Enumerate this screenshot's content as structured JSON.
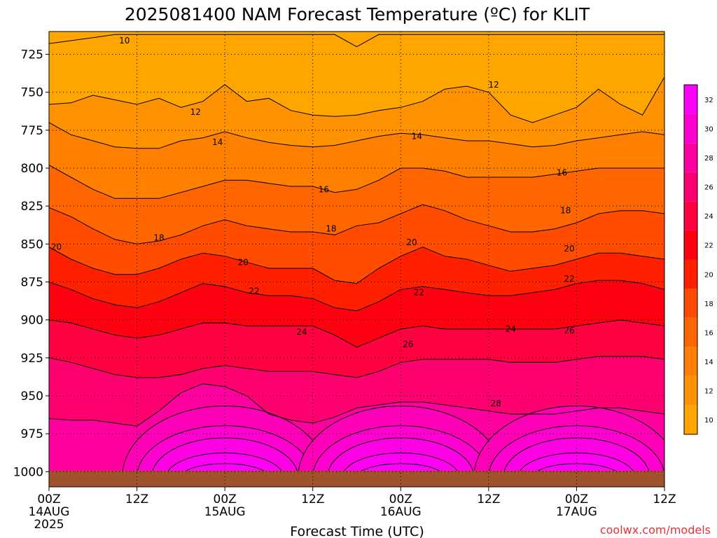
{
  "chart_data": {
    "type": "heatmap",
    "title": "2025081400 NAM Forecast Temperature (ºC) for KLIT",
    "xlabel": "Forecast Time (UTC)",
    "ylabel": "",
    "ylim": [
      1010,
      710
    ],
    "y_ticks": [
      725,
      750,
      775,
      800,
      825,
      850,
      875,
      900,
      925,
      950,
      975,
      1000
    ],
    "x_range_hours": [
      0,
      84
    ],
    "x_ticks": [
      {
        "hour": 0,
        "label": "00Z",
        "sub": "14AUG",
        "sub2": "2025"
      },
      {
        "hour": 12,
        "label": "12Z",
        "sub": "",
        "sub2": ""
      },
      {
        "hour": 24,
        "label": "00Z",
        "sub": "15AUG",
        "sub2": ""
      },
      {
        "hour": 36,
        "label": "12Z",
        "sub": "",
        "sub2": ""
      },
      {
        "hour": 48,
        "label": "00Z",
        "sub": "16AUG",
        "sub2": ""
      },
      {
        "hour": 60,
        "label": "12Z",
        "sub": "",
        "sub2": ""
      },
      {
        "hour": 72,
        "label": "00Z",
        "sub": "17AUG",
        "sub2": ""
      },
      {
        "hour": 84,
        "label": "12Z",
        "sub": "",
        "sub2": ""
      }
    ],
    "grid": true,
    "colorbar": {
      "ticks": [
        10,
        12,
        14,
        16,
        18,
        20,
        22,
        24,
        26,
        28,
        30,
        32
      ],
      "colors": [
        "#ffa500",
        "#ff9200",
        "#ff7f00",
        "#ff6600",
        "#ff4c00",
        "#ff2000",
        "#ff0010",
        "#ff0040",
        "#ff0070",
        "#ff00a0",
        "#ff00d0",
        "#ff00ff"
      ],
      "range": [
        9,
        33
      ]
    },
    "contours": [
      {
        "value": 10,
        "hours": [
          0,
          3,
          6,
          9,
          12,
          15,
          18,
          21,
          24,
          27,
          30,
          33,
          36,
          39,
          42,
          45,
          48,
          51,
          54,
          57,
          60,
          63,
          66,
          69,
          72,
          75,
          78,
          81,
          84
        ],
        "pressures": [
          718,
          716,
          714,
          712,
          712,
          712,
          712,
          712,
          712,
          712,
          712,
          712,
          712,
          712,
          720,
          712,
          712,
          712,
          712,
          712,
          712,
          712,
          712,
          712,
          712,
          712,
          712,
          712,
          712
        ]
      },
      {
        "value": 12,
        "hours": [
          0,
          3,
          6,
          9,
          12,
          15,
          18,
          21,
          24,
          27,
          30,
          33,
          36,
          39,
          42,
          45,
          48,
          51,
          54,
          57,
          60,
          63,
          66,
          69,
          72,
          75,
          78,
          81,
          84
        ],
        "pressures": [
          758,
          757,
          752,
          755,
          758,
          754,
          760,
          756,
          745,
          756,
          754,
          762,
          765,
          766,
          765,
          762,
          760,
          756,
          748,
          746,
          750,
          765,
          770,
          765,
          760,
          748,
          758,
          765,
          740
        ]
      },
      {
        "value": 14,
        "hours": [
          0,
          3,
          6,
          9,
          12,
          15,
          18,
          21,
          24,
          27,
          30,
          33,
          36,
          39,
          42,
          45,
          48,
          51,
          54,
          57,
          60,
          63,
          66,
          69,
          72,
          75,
          78,
          81,
          84
        ],
        "pressures": [
          770,
          778,
          782,
          786,
          787,
          787,
          782,
          780,
          776,
          780,
          783,
          785,
          786,
          785,
          782,
          779,
          777,
          778,
          780,
          782,
          782,
          784,
          786,
          785,
          782,
          780,
          778,
          776,
          778
        ]
      },
      {
        "value": 16,
        "hours": [
          0,
          3,
          6,
          9,
          12,
          15,
          18,
          21,
          24,
          27,
          30,
          33,
          36,
          39,
          42,
          45,
          48,
          51,
          54,
          57,
          60,
          63,
          66,
          69,
          72,
          75,
          78,
          81,
          84
        ],
        "pressures": [
          798,
          806,
          814,
          820,
          820,
          820,
          816,
          812,
          808,
          808,
          810,
          812,
          812,
          816,
          814,
          808,
          800,
          800,
          802,
          806,
          806,
          806,
          806,
          804,
          802,
          800,
          800,
          800,
          800
        ]
      },
      {
        "value": 18,
        "hours": [
          0,
          3,
          6,
          9,
          12,
          15,
          18,
          21,
          24,
          27,
          30,
          33,
          36,
          39,
          42,
          45,
          48,
          51,
          54,
          57,
          60,
          63,
          66,
          69,
          72,
          75,
          78,
          81,
          84
        ],
        "pressures": [
          826,
          832,
          840,
          847,
          850,
          848,
          844,
          838,
          834,
          838,
          840,
          842,
          842,
          844,
          838,
          836,
          830,
          824,
          828,
          834,
          838,
          842,
          842,
          840,
          836,
          830,
          828,
          828,
          830
        ]
      },
      {
        "value": 20,
        "hours": [
          0,
          3,
          6,
          9,
          12,
          15,
          18,
          21,
          24,
          27,
          30,
          33,
          36,
          39,
          42,
          45,
          48,
          51,
          54,
          57,
          60,
          63,
          66,
          69,
          72,
          75,
          78,
          81,
          84
        ],
        "pressures": [
          852,
          860,
          866,
          870,
          870,
          866,
          860,
          856,
          858,
          862,
          866,
          866,
          866,
          874,
          876,
          866,
          858,
          852,
          858,
          860,
          864,
          868,
          866,
          864,
          860,
          856,
          856,
          858,
          860
        ]
      },
      {
        "value": 22,
        "hours": [
          0,
          3,
          6,
          9,
          12,
          15,
          18,
          21,
          24,
          27,
          30,
          33,
          36,
          39,
          42,
          45,
          48,
          51,
          54,
          57,
          60,
          63,
          66,
          69,
          72,
          75,
          78,
          81,
          84
        ],
        "pressures": [
          875,
          880,
          886,
          890,
          892,
          888,
          882,
          876,
          878,
          882,
          884,
          884,
          886,
          892,
          894,
          888,
          880,
          878,
          880,
          882,
          884,
          884,
          882,
          880,
          876,
          874,
          874,
          876,
          880
        ]
      },
      {
        "value": 24,
        "hours": [
          0,
          3,
          6,
          9,
          12,
          15,
          18,
          21,
          24,
          27,
          30,
          33,
          36,
          39,
          42,
          45,
          48,
          51,
          54,
          57,
          60,
          63,
          66,
          69,
          72,
          75,
          78,
          81,
          84
        ],
        "pressures": [
          900,
          902,
          906,
          910,
          912,
          910,
          906,
          902,
          902,
          904,
          904,
          904,
          904,
          910,
          918,
          912,
          906,
          904,
          906,
          906,
          906,
          906,
          906,
          906,
          904,
          902,
          900,
          902,
          904
        ]
      },
      {
        "value": 26,
        "hours": [
          0,
          3,
          6,
          9,
          12,
          15,
          18,
          21,
          24,
          27,
          30,
          33,
          36,
          39,
          42,
          45,
          48,
          51,
          54,
          57,
          60,
          63,
          66,
          69,
          72,
          75,
          78,
          81,
          84
        ],
        "pressures": [
          925,
          928,
          932,
          936,
          938,
          938,
          936,
          932,
          930,
          932,
          934,
          934,
          934,
          936,
          938,
          934,
          928,
          926,
          926,
          926,
          926,
          928,
          928,
          928,
          926,
          924,
          924,
          924,
          926
        ]
      },
      {
        "value": 28,
        "hours": [
          0,
          3,
          6,
          9,
          12,
          15,
          18,
          21,
          24,
          27,
          30,
          33,
          36,
          39,
          42,
          45,
          48,
          51,
          54,
          57,
          60,
          63,
          66,
          69,
          72,
          75,
          78,
          81,
          84
        ],
        "pressures": [
          965,
          966,
          966,
          968,
          970,
          960,
          948,
          942,
          944,
          950,
          962,
          966,
          968,
          964,
          958,
          956,
          954,
          954,
          956,
          958,
          960,
          962,
          962,
          962,
          960,
          958,
          958,
          960,
          962
        ]
      }
    ],
    "warm_pockets": [
      {
        "center_hour": 24,
        "center_p": 1000,
        "rings": [
          [
            14,
            47
          ],
          [
            12,
            34
          ],
          [
            10,
            26
          ],
          [
            8,
            16
          ],
          [
            6,
            9
          ]
        ]
      },
      {
        "center_hour": 48,
        "center_p": 1000,
        "rings": [
          [
            14,
            47
          ],
          [
            12,
            34
          ],
          [
            10,
            26
          ],
          [
            8,
            16
          ],
          [
            6,
            9
          ]
        ]
      },
      {
        "center_hour": 72,
        "center_p": 1000,
        "rings": [
          [
            14,
            47
          ],
          [
            12,
            34
          ],
          [
            10,
            26
          ],
          [
            8,
            16
          ],
          [
            6,
            9
          ]
        ]
      }
    ],
    "contour_labels": [
      {
        "text": "10",
        "hour": 10.3,
        "p": 716
      },
      {
        "text": "12",
        "hour": 20,
        "p": 763
      },
      {
        "text": "12",
        "hour": 60.7,
        "p": 745
      },
      {
        "text": "14",
        "hour": 23,
        "p": 783
      },
      {
        "text": "14",
        "hour": 50.2,
        "p": 779
      },
      {
        "text": "16",
        "hour": 37.5,
        "p": 814
      },
      {
        "text": "16",
        "hour": 70,
        "p": 803
      },
      {
        "text": "18",
        "hour": 15,
        "p": 846
      },
      {
        "text": "18",
        "hour": 38.5,
        "p": 840
      },
      {
        "text": "18",
        "hour": 70.5,
        "p": 828
      },
      {
        "text": "20",
        "hour": 1,
        "p": 852
      },
      {
        "text": "20",
        "hour": 26.5,
        "p": 862
      },
      {
        "text": "20",
        "hour": 49.5,
        "p": 849
      },
      {
        "text": "20",
        "hour": 71,
        "p": 853
      },
      {
        "text": "22",
        "hour": 28,
        "p": 881
      },
      {
        "text": "22",
        "hour": 50.5,
        "p": 882
      },
      {
        "text": "22",
        "hour": 71,
        "p": 873
      },
      {
        "text": "24",
        "hour": 34.5,
        "p": 908
      },
      {
        "text": "24",
        "hour": 63,
        "p": 906
      },
      {
        "text": "26",
        "hour": 49,
        "p": 916
      },
      {
        "text": "26",
        "hour": 71,
        "p": 907
      },
      {
        "text": "28",
        "hour": 61,
        "p": 955
      }
    ]
  },
  "credit": "coolwx.com/models"
}
